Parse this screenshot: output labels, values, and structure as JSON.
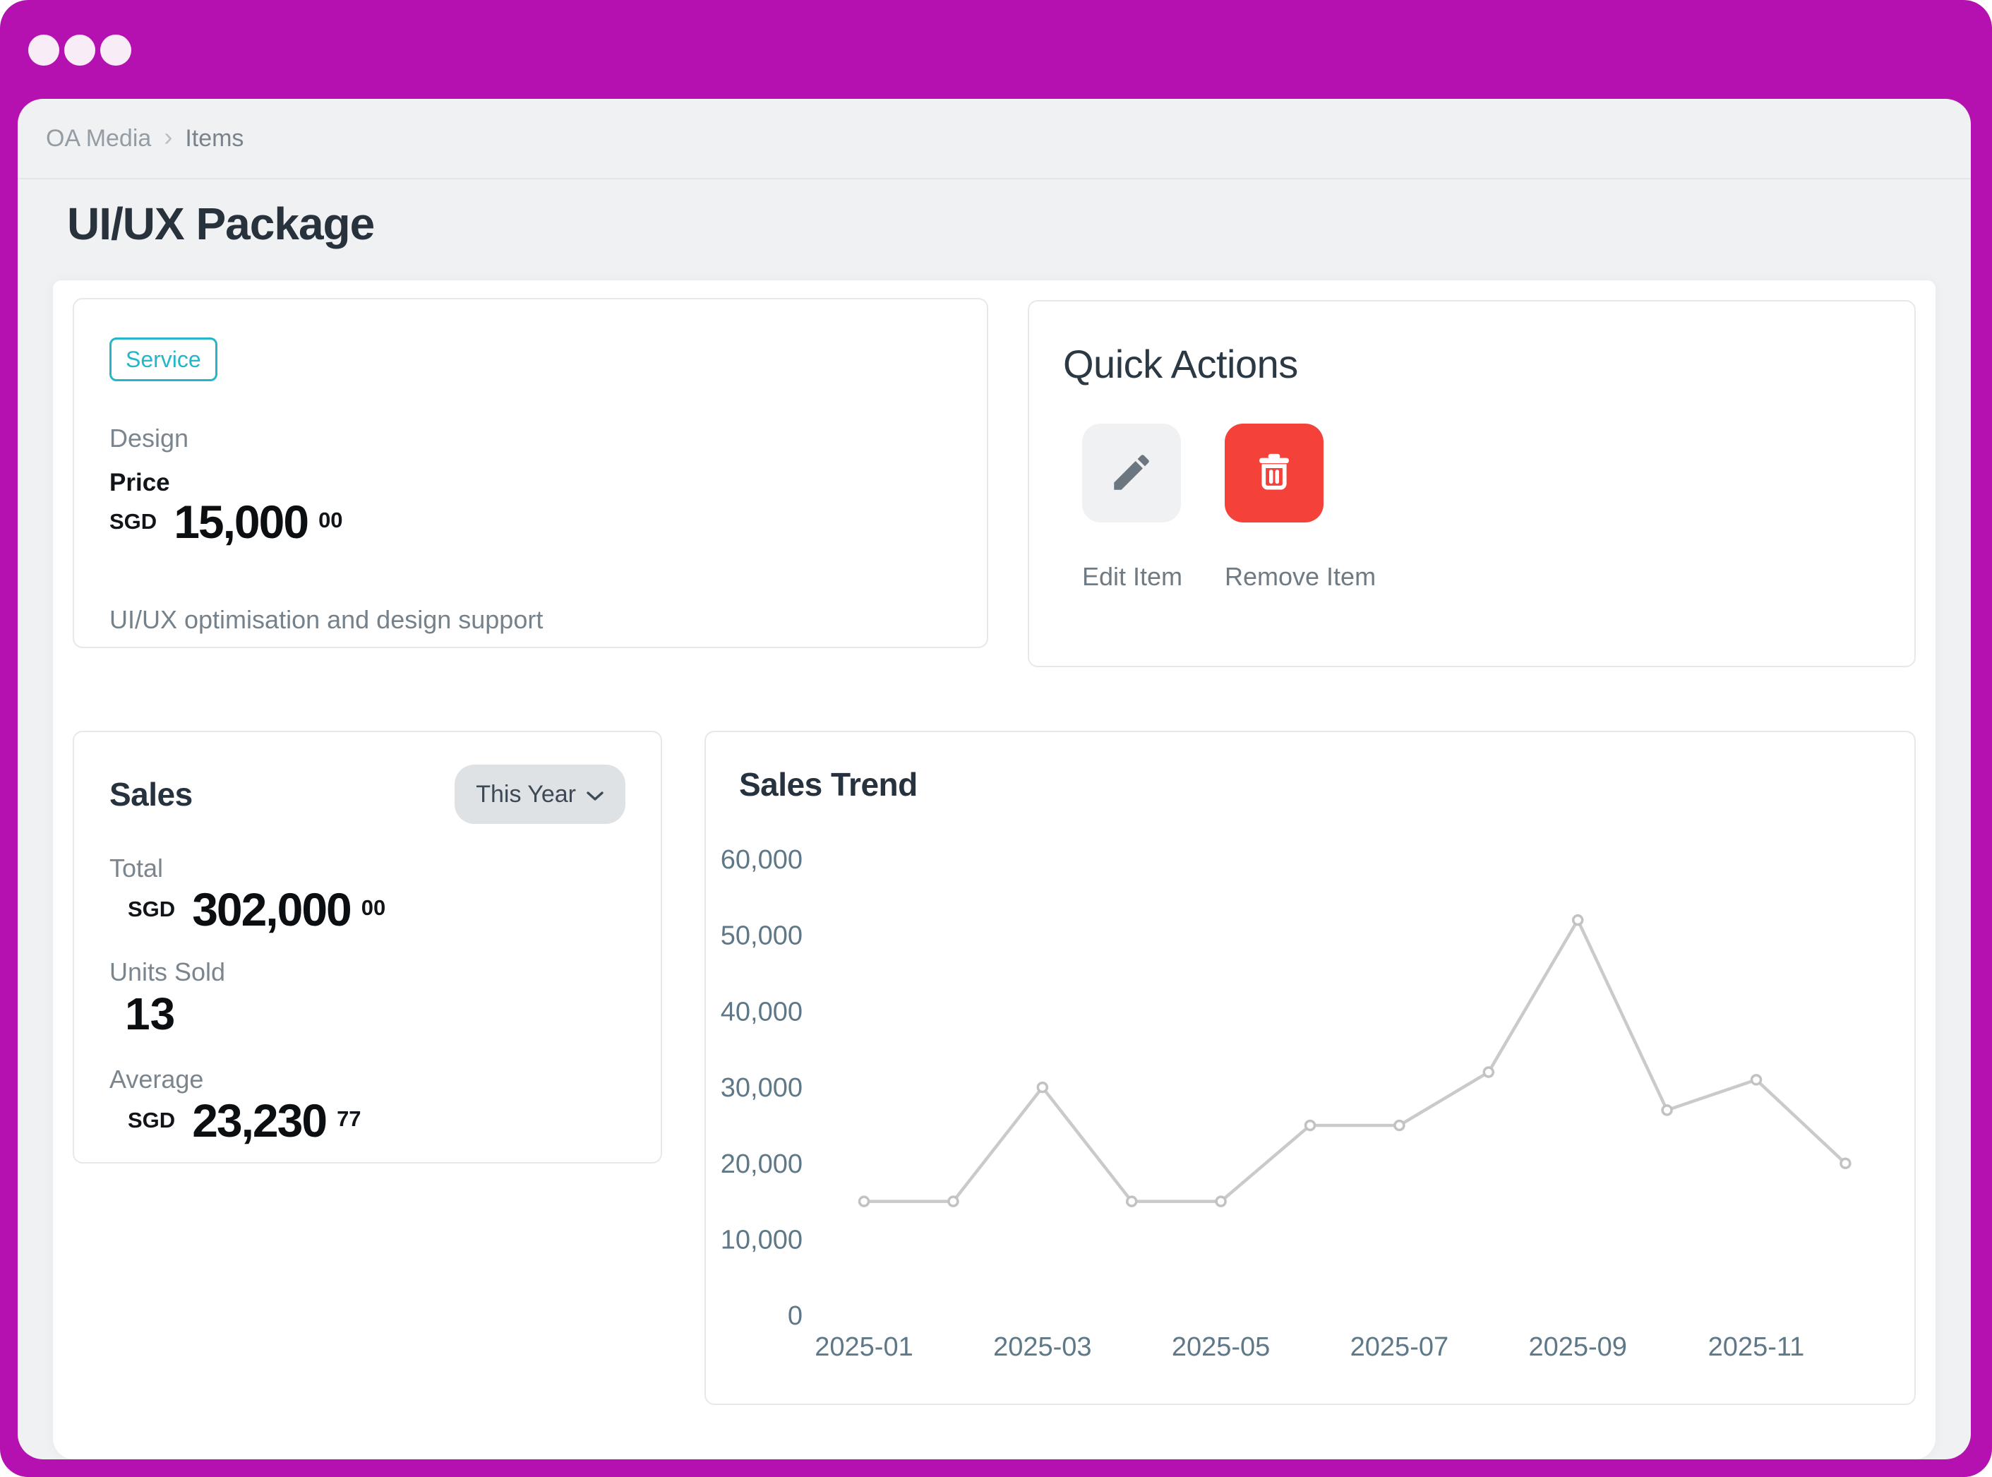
{
  "breadcrumb": {
    "items": [
      "OA Media",
      "Items"
    ],
    "separator": "›"
  },
  "page": {
    "title": "UI/UX Package"
  },
  "item_card": {
    "badge": "Service",
    "category": "Design",
    "price_label": "Price",
    "currency": "SGD",
    "price_main": "15,000",
    "price_cents": "00",
    "description": "UI/UX optimisation and design support"
  },
  "quick_actions": {
    "title": "Quick Actions",
    "actions": [
      {
        "label": "Edit Item",
        "icon": "pencil-icon"
      },
      {
        "label": "Remove Item",
        "icon": "trash-icon"
      }
    ]
  },
  "sales": {
    "title": "Sales",
    "period_selector": "This Year",
    "total_label": "Total",
    "total_currency": "SGD",
    "total_main": "302,000",
    "total_cents": "00",
    "units_label": "Units Sold",
    "units_value": "13",
    "average_label": "Average",
    "average_currency": "SGD",
    "average_main": "23,230",
    "average_cents": "77"
  },
  "chart_data": {
    "type": "line",
    "title": "Sales Trend",
    "x": [
      "2025-01",
      "2025-02",
      "2025-03",
      "2025-04",
      "2025-05",
      "2025-06",
      "2025-07",
      "2025-08",
      "2025-09",
      "2025-10",
      "2025-11",
      "2025-12"
    ],
    "values": [
      15000,
      15000,
      30000,
      15000,
      15000,
      25000,
      25000,
      32000,
      52000,
      27000,
      31000,
      20000
    ],
    "xlabel": "",
    "ylabel": "",
    "ylim": [
      0,
      60000
    ],
    "ytick_step": 10000,
    "xtick_every": 2,
    "grid": false,
    "legend": null
  },
  "colors": {
    "titlebar_magenta": "#b511b1",
    "accent_cyan": "#25b6c9",
    "danger_red": "#f4423a",
    "chart_line": "#c9cacb",
    "marker_stroke": "#c2c2c2",
    "axis_label": "#5e7888"
  }
}
